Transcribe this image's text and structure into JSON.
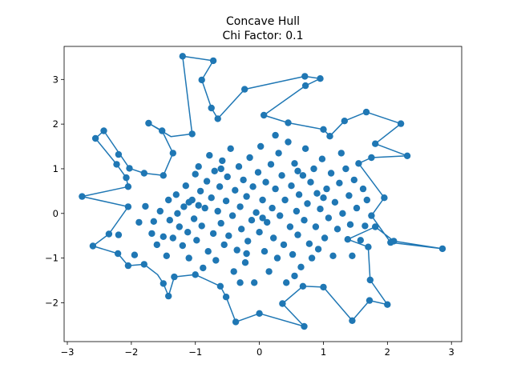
{
  "chart_data": {
    "type": "scatter",
    "title": "Concave Hull",
    "subtitle": "Chi Factor: 0.1",
    "xlabel": "",
    "ylabel": "",
    "xlim": [
      -3.05,
      3.16
    ],
    "ylim": [
      -2.87,
      3.74
    ],
    "xticks": [
      -3,
      -2,
      -1,
      0,
      1,
      2,
      3
    ],
    "yticks": [
      -2,
      -1,
      0,
      1,
      2,
      3
    ],
    "grid": false,
    "legend": "none",
    "colors": {
      "series": "#1f77b4",
      "axes": "#000000",
      "background": "#ffffff"
    },
    "hull": [
      [
        -1.2,
        3.52
      ],
      [
        -0.72,
        3.42
      ],
      [
        -0.9,
        2.99
      ],
      [
        -0.75,
        2.36
      ],
      [
        -0.65,
        2.12
      ],
      [
        -0.23,
        2.78
      ],
      [
        0.71,
        3.07
      ],
      [
        0.95,
        3.02
      ],
      [
        0.72,
        2.86
      ],
      [
        0.07,
        2.2
      ],
      [
        0.45,
        2.03
      ],
      [
        1.0,
        1.88
      ],
      [
        1.1,
        1.73
      ],
      [
        1.33,
        2.07
      ],
      [
        1.67,
        2.27
      ],
      [
        2.21,
        2.01
      ],
      [
        1.81,
        1.56
      ],
      [
        2.31,
        1.29
      ],
      [
        1.75,
        1.25
      ],
      [
        1.55,
        1.12
      ],
      [
        1.95,
        0.35
      ],
      [
        1.75,
        -0.05
      ],
      [
        2.05,
        -0.65
      ],
      [
        2.86,
        -0.79
      ],
      [
        2.1,
        -0.62
      ],
      [
        1.81,
        -0.3
      ],
      [
        1.38,
        -0.58
      ],
      [
        1.7,
        -0.75
      ],
      [
        1.73,
        -1.49
      ],
      [
        2.0,
        -2.04
      ],
      [
        1.72,
        -1.95
      ],
      [
        1.45,
        -2.4
      ],
      [
        1.0,
        -1.65
      ],
      [
        0.68,
        -1.63
      ],
      [
        0.36,
        -2.02
      ],
      [
        0.7,
        -2.53
      ],
      [
        0.0,
        -2.24
      ],
      [
        -0.37,
        -2.43
      ],
      [
        -0.52,
        -1.87
      ],
      [
        -0.61,
        -1.63
      ],
      [
        -1.0,
        -1.37
      ],
      [
        -1.33,
        -1.42
      ],
      [
        -1.42,
        -1.85
      ],
      [
        -1.5,
        -1.57
      ],
      [
        -1.59,
        -1.37
      ],
      [
        -1.8,
        -1.14
      ],
      [
        -2.05,
        -1.17
      ],
      [
        -2.21,
        -0.9
      ],
      [
        -2.6,
        -0.73
      ],
      [
        -2.35,
        -0.46
      ],
      [
        -2.05,
        0.15
      ],
      [
        -2.77,
        0.38
      ],
      [
        -2.05,
        0.6
      ],
      [
        -2.08,
        0.8
      ],
      [
        -2.23,
        1.1
      ],
      [
        -2.56,
        1.68
      ],
      [
        -2.43,
        1.85
      ],
      [
        -2.03,
        1.01
      ],
      [
        -1.8,
        0.9
      ],
      [
        -1.5,
        0.85
      ],
      [
        -1.35,
        1.35
      ],
      [
        -1.52,
        1.85
      ],
      [
        -1.73,
        2.02
      ],
      [
        -1.38,
        1.72
      ],
      [
        -1.05,
        1.78
      ],
      [
        -1.2,
        3.52
      ]
    ],
    "points": [
      [
        -2.77,
        0.38
      ],
      [
        -2.6,
        -0.73
      ],
      [
        -2.56,
        1.68
      ],
      [
        -2.43,
        1.85
      ],
      [
        -2.35,
        -0.46
      ],
      [
        -2.23,
        1.1
      ],
      [
        -2.21,
        -0.9
      ],
      [
        -2.2,
        1.32
      ],
      [
        -2.2,
        -0.48
      ],
      [
        -2.08,
        0.8
      ],
      [
        -2.05,
        0.6
      ],
      [
        -2.05,
        0.15
      ],
      [
        -2.05,
        -1.17
      ],
      [
        -2.03,
        1.01
      ],
      [
        -1.95,
        -0.93
      ],
      [
        -1.8,
        0.9
      ],
      [
        -1.8,
        -1.14
      ],
      [
        -1.73,
        2.02
      ],
      [
        -1.68,
        -0.45
      ],
      [
        -1.52,
        1.85
      ],
      [
        -1.5,
        0.85
      ],
      [
        -1.5,
        -1.57
      ],
      [
        -1.42,
        -1.85
      ],
      [
        -1.35,
        1.35
      ],
      [
        -1.33,
        -1.42
      ],
      [
        -1.2,
        3.52
      ],
      [
        -1.05,
        1.78
      ],
      [
        -1.0,
        -1.37
      ],
      [
        -0.9,
        2.99
      ],
      [
        -0.75,
        2.36
      ],
      [
        -0.72,
        3.42
      ],
      [
        -0.65,
        2.12
      ],
      [
        -0.61,
        -1.63
      ],
      [
        -0.52,
        -1.87
      ],
      [
        -0.37,
        -2.43
      ],
      [
        -0.23,
        2.78
      ],
      [
        0.0,
        -2.24
      ],
      [
        0.07,
        2.2
      ],
      [
        0.36,
        -2.02
      ],
      [
        0.45,
        2.03
      ],
      [
        0.68,
        -1.63
      ],
      [
        0.7,
        -2.53
      ],
      [
        0.71,
        3.07
      ],
      [
        0.72,
        2.86
      ],
      [
        0.95,
        3.02
      ],
      [
        1.0,
        1.88
      ],
      [
        1.0,
        -1.65
      ],
      [
        1.1,
        1.73
      ],
      [
        1.33,
        2.07
      ],
      [
        1.38,
        -0.58
      ],
      [
        1.45,
        -2.4
      ],
      [
        1.55,
        1.12
      ],
      [
        1.67,
        2.27
      ],
      [
        1.7,
        -0.75
      ],
      [
        1.72,
        -1.95
      ],
      [
        1.73,
        -1.49
      ],
      [
        1.75,
        1.25
      ],
      [
        1.75,
        -0.05
      ],
      [
        1.81,
        1.56
      ],
      [
        1.81,
        -0.3
      ],
      [
        1.95,
        0.35
      ],
      [
        2.0,
        -2.04
      ],
      [
        2.05,
        -0.65
      ],
      [
        2.1,
        -0.62
      ],
      [
        2.21,
        2.01
      ],
      [
        2.31,
        1.29
      ],
      [
        2.86,
        -0.79
      ],
      [
        -1.88,
        -0.2
      ],
      [
        -1.78,
        0.16
      ],
      [
        -1.65,
        -0.18
      ],
      [
        -1.6,
        -0.7
      ],
      [
        -1.55,
        0.05
      ],
      [
        -1.5,
        -0.52
      ],
      [
        -1.45,
        -0.95
      ],
      [
        -1.42,
        0.3
      ],
      [
        -1.4,
        -0.15
      ],
      [
        -1.35,
        -0.55
      ],
      [
        -1.3,
        0.42
      ],
      [
        -1.28,
        0.0
      ],
      [
        -1.25,
        -0.3
      ],
      [
        -1.2,
        -0.72
      ],
      [
        -1.18,
        0.15
      ],
      [
        -1.15,
        0.62
      ],
      [
        -1.12,
        -0.42
      ],
      [
        -1.1,
        -1.0
      ],
      [
        -1.05,
        0.3
      ],
      [
        -1.02,
        -0.12
      ],
      [
        -1.0,
        0.88
      ],
      [
        -0.98,
        -0.6
      ],
      [
        -0.95,
        1.05
      ],
      [
        -0.92,
        0.5
      ],
      [
        -0.9,
        -0.28
      ],
      [
        -0.88,
        -1.22
      ],
      [
        -0.85,
        0.12
      ],
      [
        -0.82,
        0.72
      ],
      [
        -0.8,
        -0.85
      ],
      [
        -0.78,
        1.3
      ],
      [
        -0.75,
        0.35
      ],
      [
        -0.72,
        -0.45
      ],
      [
        -0.7,
        0.95
      ],
      [
        -0.68,
        -1.05
      ],
      [
        -0.65,
        0.05
      ],
      [
        -0.62,
        0.6
      ],
      [
        -0.6,
        -0.22
      ],
      [
        -0.58,
        1.18
      ],
      [
        -0.55,
        -0.7
      ],
      [
        -0.52,
        0.28
      ],
      [
        -0.5,
        0.82
      ],
      [
        -0.48,
        -0.5
      ],
      [
        -0.45,
        1.45
      ],
      [
        -0.42,
        -0.05
      ],
      [
        -0.4,
        -1.3
      ],
      [
        -0.38,
        0.52
      ],
      [
        -0.35,
        -0.82
      ],
      [
        -0.32,
        1.05
      ],
      [
        -0.3,
        0.15
      ],
      [
        -0.28,
        -0.35
      ],
      [
        -0.25,
        0.75
      ],
      [
        -0.22,
        -1.1
      ],
      [
        -0.2,
        0.38
      ],
      [
        -0.18,
        -0.62
      ],
      [
        -0.15,
        1.25
      ],
      [
        -0.12,
        -0.15
      ],
      [
        -0.1,
        0.6
      ],
      [
        -0.08,
        -1.55
      ],
      [
        -0.05,
        0.02
      ],
      [
        -0.02,
        0.92
      ],
      [
        0.0,
        -0.42
      ],
      [
        0.02,
        1.5
      ],
      [
        0.05,
        0.3
      ],
      [
        0.08,
        -0.85
      ],
      [
        0.1,
        0.7
      ],
      [
        0.12,
        -0.2
      ],
      [
        0.15,
        -1.3
      ],
      [
        0.18,
        1.1
      ],
      [
        0.2,
        0.12
      ],
      [
        0.22,
        -0.55
      ],
      [
        0.25,
        0.55
      ],
      [
        0.28,
        -1.0
      ],
      [
        0.3,
        1.35
      ],
      [
        0.32,
        -0.05
      ],
      [
        0.35,
        0.85
      ],
      [
        0.38,
        -0.7
      ],
      [
        0.4,
        0.3
      ],
      [
        0.42,
        -1.55
      ],
      [
        0.45,
        1.6
      ],
      [
        0.48,
        -0.3
      ],
      [
        0.5,
        0.62
      ],
      [
        0.52,
        -0.92
      ],
      [
        0.55,
        1.12
      ],
      [
        0.58,
        0.05
      ],
      [
        0.6,
        -0.48
      ],
      [
        0.62,
        0.42
      ],
      [
        0.65,
        -1.2
      ],
      [
        0.68,
        0.85
      ],
      [
        0.7,
        -0.15
      ],
      [
        0.72,
        1.45
      ],
      [
        0.75,
        0.22
      ],
      [
        0.78,
        -0.68
      ],
      [
        0.8,
        0.7
      ],
      [
        0.82,
        -1.0
      ],
      [
        0.85,
        1.0
      ],
      [
        0.88,
        -0.3
      ],
      [
        0.9,
        0.45
      ],
      [
        0.92,
        -0.8
      ],
      [
        0.95,
        0.1
      ],
      [
        0.98,
        1.22
      ],
      [
        1.02,
        -0.55
      ],
      [
        1.05,
        0.55
      ],
      [
        1.08,
        -0.1
      ],
      [
        1.12,
        0.9
      ],
      [
        1.15,
        -0.95
      ],
      [
        1.18,
        0.25
      ],
      [
        1.22,
        -0.35
      ],
      [
        1.25,
        0.68
      ],
      [
        1.28,
        1.35
      ],
      [
        1.3,
        0.0
      ],
      [
        1.35,
        1.0
      ],
      [
        1.4,
        0.4
      ],
      [
        1.42,
        -0.25
      ],
      [
        1.45,
        -0.95
      ],
      [
        1.48,
        0.75
      ],
      [
        1.52,
        0.12
      ],
      [
        1.58,
        -0.6
      ],
      [
        1.62,
        0.55
      ],
      [
        1.65,
        -0.28
      ],
      [
        1.68,
        0.3
      ],
      [
        -0.95,
        0.18
      ],
      [
        -0.6,
        1.0
      ],
      [
        -0.3,
        -1.55
      ],
      [
        0.25,
        1.75
      ],
      [
        0.55,
        -1.4
      ],
      [
        1.0,
        0.35
      ],
      [
        -1.1,
        0.25
      ],
      [
        0.6,
        0.95
      ],
      [
        -0.2,
        -0.9
      ],
      [
        0.05,
        -0.1
      ]
    ]
  }
}
